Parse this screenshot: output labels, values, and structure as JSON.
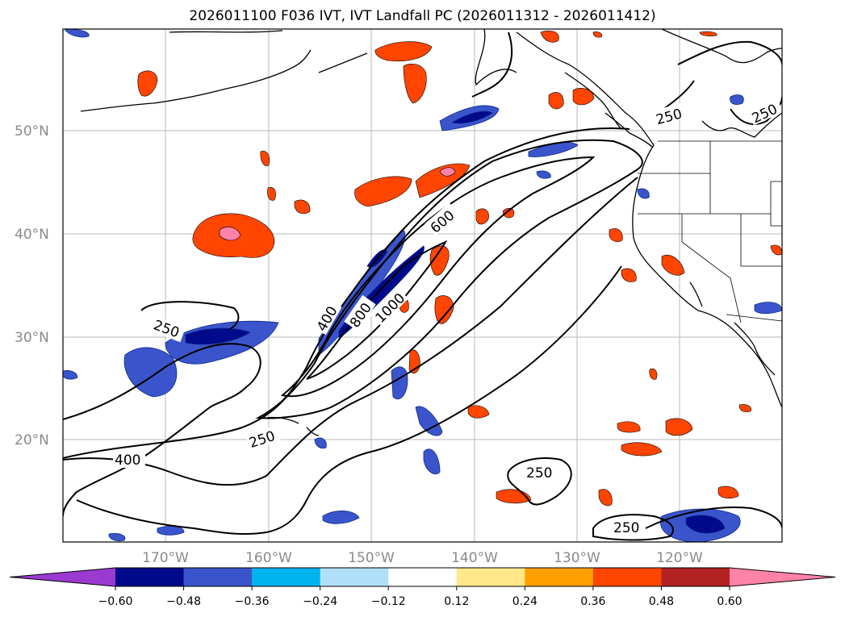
{
  "title": "2026011100 F036 IVT, IVT Landfall PC (2026011312 - 2026011412)",
  "map": {
    "lat_labels": [
      "50°N",
      "40°N",
      "30°N",
      "20°N"
    ],
    "lon_labels": [
      "170°W",
      "160°W",
      "150°W",
      "140°W",
      "130°W",
      "120°W"
    ],
    "contour_labels": [
      "250",
      "250",
      "250",
      "250",
      "250",
      "250",
      "400",
      "400",
      "600",
      "800",
      "1000"
    ],
    "ivt_contour_levels": [
      250,
      400,
      600,
      800,
      1000
    ]
  },
  "colorbar": {
    "ticks": [
      "−0.60",
      "−0.48",
      "−0.36",
      "−0.24",
      "−0.12",
      "0.12",
      "0.24",
      "0.36",
      "0.48",
      "0.60"
    ],
    "colors": [
      "#9a3ad1",
      "#000a8a",
      "#3a55cc",
      "#00b4f0",
      "#b0e0f8",
      "#ffffff",
      "#ffe88a",
      "#ffa000",
      "#ff4500",
      "#b22222",
      "#ff82a9"
    ],
    "extend": "both"
  }
}
